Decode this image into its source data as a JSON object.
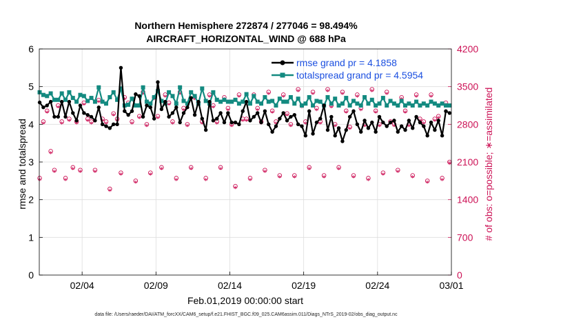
{
  "chart_data": {
    "type": "line",
    "title": "Northern Hemisphere 272874 / 277046 = 98.494%",
    "subtitle": "AIRCRAFT_HORIZONTAL_WIND @ 688 hPa",
    "xlabel": "Feb.01,2019 00:00:00 start",
    "ylabel": "rmse and totalspread",
    "y2label": "# of obs: o=possible; ∗=assimilated",
    "footnote": "data file: /Users/raeder/DAI/ATM_forcXX/CAM6_setup/f.e21.FHIST_BGC.f09_025.CAM6assim.011/Diags_NTrS_2019-02/obs_diag_output.nc",
    "x_ticks": [
      "02/04",
      "02/09",
      "02/14",
      "02/19",
      "02/24",
      "03/01"
    ],
    "x_tick_days": [
      3,
      8,
      13,
      18,
      23,
      28
    ],
    "xlim": [
      0.1,
      28.0
    ],
    "ylim": [
      0,
      6
    ],
    "y_ticks": [
      "0",
      "1",
      "2",
      "3",
      "4",
      "5",
      "6"
    ],
    "y2lim": [
      0,
      4200
    ],
    "y2_ticks": [
      "0",
      "700",
      "1400",
      "2100",
      "2800",
      "3500",
      "4200"
    ],
    "grid": true,
    "legend_position": "top-right",
    "colors": {
      "rmse": "#000000",
      "totalspread": "#138a80",
      "obs": "#cc1155",
      "legend_text": "#1b4fe0",
      "grid": "#dddddd"
    },
    "series": [
      {
        "name": "rmse grand pr = 4.1858",
        "axis": "left",
        "x": [
          0.125,
          0.375,
          0.625,
          0.875,
          1.125,
          1.375,
          1.625,
          1.875,
          2.125,
          2.375,
          2.625,
          2.875,
          3.125,
          3.375,
          3.625,
          3.875,
          4.125,
          4.375,
          4.625,
          4.875,
          5.125,
          5.375,
          5.625,
          5.875,
          6.125,
          6.375,
          6.625,
          6.875,
          7.125,
          7.375,
          7.625,
          7.875,
          8.125,
          8.375,
          8.625,
          8.875,
          9.125,
          9.375,
          9.625,
          9.875,
          10.125,
          10.375,
          10.625,
          10.875,
          11.125,
          11.375,
          11.625,
          11.875,
          12.125,
          12.375,
          12.625,
          12.875,
          13.125,
          13.375,
          13.625,
          13.875,
          14.125,
          14.375,
          14.625,
          14.875,
          15.125,
          15.375,
          15.625,
          15.875,
          16.125,
          16.375,
          16.625,
          16.875,
          17.125,
          17.375,
          17.625,
          17.875,
          18.125,
          18.375,
          18.625,
          18.875,
          19.125,
          19.375,
          19.625,
          19.875,
          20.125,
          20.375,
          20.625,
          20.875,
          21.125,
          21.375,
          21.625,
          21.875,
          22.125,
          22.375,
          22.625,
          22.875,
          23.125,
          23.375,
          23.625,
          23.875,
          24.125,
          24.375,
          24.625,
          24.875,
          25.125,
          25.375,
          25.625,
          25.875,
          26.125,
          26.375,
          26.625,
          26.875,
          27.125,
          27.375,
          27.625,
          27.875
        ],
        "values": [
          4.58,
          4.45,
          4.5,
          4.6,
          4.2,
          4.2,
          4.6,
          4.2,
          4.6,
          4.3,
          4.1,
          4.5,
          4.3,
          4.25,
          4.2,
          4.1,
          4.45,
          4.0,
          3.95,
          3.9,
          4.0,
          4.0,
          5.5,
          4.35,
          4.25,
          4.35,
          4.8,
          4.75,
          4.2,
          4.5,
          4.45,
          4.15,
          5.12,
          4.4,
          4.6,
          4.2,
          4.3,
          4.45,
          4.05,
          4.3,
          4.45,
          4.7,
          4.25,
          4.6,
          4.15,
          3.85,
          4.6,
          4.1,
          4.15,
          4.3,
          4.05,
          4.3,
          4.05,
          4.05,
          4.0,
          4.35,
          4.6,
          4.1,
          4.2,
          4.3,
          4.05,
          4.35,
          4.0,
          3.8,
          3.95,
          4.15,
          4.3,
          4.1,
          4.2,
          4.25,
          4.0,
          3.95,
          3.7,
          4.35,
          3.75,
          4.05,
          4.15,
          4.5,
          3.85,
          4.2,
          3.7,
          3.9,
          3.55,
          3.85,
          4.2,
          4.35,
          4.0,
          3.8,
          4.1,
          3.9,
          4.05,
          3.8,
          4.2,
          4.05,
          3.95,
          4.05,
          4.1,
          3.8,
          3.95,
          3.85,
          4.1,
          3.9,
          4.2,
          4.05,
          3.95,
          3.7,
          4.05,
          3.85,
          4.1,
          3.7,
          4.35,
          4.3
        ]
      },
      {
        "name": "totalspread grand pr = 4.5954",
        "axis": "left",
        "x": [
          0.125,
          0.375,
          0.625,
          0.875,
          1.125,
          1.375,
          1.625,
          1.875,
          2.125,
          2.375,
          2.625,
          2.875,
          3.125,
          3.375,
          3.625,
          3.875,
          4.125,
          4.375,
          4.625,
          4.875,
          5.125,
          5.375,
          5.625,
          5.875,
          6.125,
          6.375,
          6.625,
          6.875,
          7.125,
          7.375,
          7.625,
          7.875,
          8.125,
          8.375,
          8.625,
          8.875,
          9.125,
          9.375,
          9.625,
          9.875,
          10.125,
          10.375,
          10.625,
          10.875,
          11.125,
          11.375,
          11.625,
          11.875,
          12.125,
          12.375,
          12.625,
          12.875,
          13.125,
          13.375,
          13.625,
          13.875,
          14.125,
          14.375,
          14.625,
          14.875,
          15.125,
          15.375,
          15.625,
          15.875,
          16.125,
          16.375,
          16.625,
          16.875,
          17.125,
          17.375,
          17.625,
          17.875,
          18.125,
          18.375,
          18.625,
          18.875,
          19.125,
          19.375,
          19.625,
          19.875,
          20.125,
          20.375,
          20.625,
          20.875,
          21.125,
          21.375,
          21.625,
          21.875,
          22.125,
          22.375,
          22.625,
          22.875,
          23.125,
          23.375,
          23.625,
          23.875,
          24.125,
          24.375,
          24.625,
          24.875,
          25.125,
          25.375,
          25.625,
          25.875,
          26.125,
          26.375,
          26.625,
          26.875,
          27.125,
          27.375,
          27.625,
          27.875
        ],
        "values": [
          4.85,
          4.78,
          4.75,
          4.82,
          4.65,
          4.65,
          4.82,
          4.65,
          4.85,
          4.7,
          4.6,
          4.78,
          4.75,
          4.62,
          4.7,
          4.6,
          4.98,
          4.6,
          4.55,
          4.72,
          4.85,
          4.65,
          4.95,
          4.5,
          4.52,
          4.68,
          4.5,
          4.5,
          4.98,
          4.6,
          4.55,
          4.72,
          4.88,
          4.62,
          4.55,
          4.85,
          4.75,
          4.55,
          4.98,
          4.62,
          4.55,
          4.85,
          4.75,
          4.55,
          4.95,
          4.62,
          4.55,
          4.85,
          4.65,
          4.6,
          4.65,
          4.6,
          4.6,
          4.65,
          4.55,
          4.6,
          4.8,
          4.55,
          4.75,
          4.6,
          4.55,
          4.72,
          4.6,
          4.62,
          4.5,
          4.68,
          4.6,
          4.6,
          4.72,
          4.55,
          4.68,
          4.5,
          4.55,
          4.72,
          4.5,
          4.62,
          4.6,
          4.5,
          4.72,
          4.55,
          4.68,
          4.5,
          4.55,
          4.7,
          4.5,
          4.62,
          4.55,
          4.5,
          4.72,
          4.55,
          4.65,
          4.5,
          4.55,
          4.7,
          4.5,
          4.62,
          4.55,
          4.5,
          4.62,
          4.5,
          4.55,
          4.5,
          4.6,
          4.5,
          4.55,
          4.5,
          4.6,
          4.55,
          4.5,
          4.55,
          4.5,
          4.5
        ]
      },
      {
        "name": "possible",
        "axis": "right",
        "marker": "o",
        "x": [
          0.125,
          0.375,
          0.625,
          0.875,
          1.125,
          1.375,
          1.625,
          1.875,
          2.125,
          2.375,
          2.625,
          2.875,
          3.125,
          3.375,
          3.625,
          3.875,
          4.125,
          4.375,
          4.625,
          4.875,
          5.125,
          5.375,
          5.625,
          5.875,
          6.125,
          6.375,
          6.625,
          6.875,
          7.125,
          7.375,
          7.625,
          7.875,
          8.125,
          8.375,
          8.625,
          8.875,
          9.125,
          9.375,
          9.625,
          9.875,
          10.125,
          10.375,
          10.625,
          10.875,
          11.125,
          11.375,
          11.625,
          11.875,
          12.125,
          12.375,
          12.625,
          12.875,
          13.125,
          13.375,
          13.625,
          13.875,
          14.125,
          14.375,
          14.625,
          14.875,
          15.125,
          15.375,
          15.625,
          15.875,
          16.125,
          16.375,
          16.625,
          16.875,
          17.125,
          17.375,
          17.625,
          17.875,
          18.125,
          18.375,
          18.625,
          18.875,
          19.125,
          19.375,
          19.625,
          19.875,
          20.125,
          20.375,
          20.625,
          20.875,
          21.125,
          21.375,
          21.625,
          21.875,
          22.125,
          22.375,
          22.625,
          22.875,
          23.125,
          23.375,
          23.625,
          23.875,
          24.125,
          24.375,
          24.625,
          24.875,
          25.125,
          25.375,
          25.625,
          25.875,
          26.125,
          26.375,
          26.625,
          26.875,
          27.125,
          27.375,
          27.625,
          27.875
        ],
        "values": [
          1800,
          2850,
          3050,
          2300,
          1950,
          3150,
          2850,
          1800,
          2900,
          2000,
          2850,
          1950,
          3200,
          2900,
          2850,
          1950,
          3250,
          2900,
          2850,
          1600,
          3000,
          2900,
          1900,
          3300,
          3200,
          2850,
          1750,
          2950,
          3400,
          2800,
          1900,
          3300,
          2950,
          2000,
          3350,
          3200,
          2850,
          1800,
          3400,
          3100,
          2800,
          2000,
          3300,
          3200,
          2850,
          1800,
          3350,
          3150,
          2850,
          2000,
          3300,
          3100,
          2800,
          1650,
          3350,
          2900,
          2900,
          1800,
          3350,
          3100,
          2850,
          1950,
          3400,
          3050,
          2850,
          1850,
          3350,
          3000,
          2800,
          1850,
          3450,
          3150,
          2850,
          2000,
          3400,
          3100,
          2850,
          1850,
          3450,
          3150,
          2800,
          2000,
          3400,
          3050,
          2750,
          1850,
          3350,
          3100,
          2800,
          1800,
          3450,
          3050,
          2800,
          1900,
          3400,
          2850,
          2800,
          1950,
          3300,
          3050,
          2800,
          1850,
          3350,
          2900,
          2850,
          1750,
          3350,
          2900,
          2950,
          1800,
          3200,
          2100
        ]
      },
      {
        "name": "assimilated",
        "axis": "right",
        "marker": "*",
        "x": [
          0.125,
          0.375,
          0.625,
          0.875,
          1.125,
          1.375,
          1.625,
          1.875,
          2.125,
          2.375,
          2.625,
          2.875,
          3.125,
          3.375,
          3.625,
          3.875,
          4.125,
          4.375,
          4.625,
          4.875,
          5.125,
          5.375,
          5.625,
          5.875,
          6.125,
          6.375,
          6.625,
          6.875,
          7.125,
          7.375,
          7.625,
          7.875,
          8.125,
          8.375,
          8.625,
          8.875,
          9.125,
          9.375,
          9.625,
          9.875,
          10.125,
          10.375,
          10.625,
          10.875,
          11.125,
          11.375,
          11.625,
          11.875,
          12.125,
          12.375,
          12.625,
          12.875,
          13.125,
          13.375,
          13.625,
          13.875,
          14.125,
          14.375,
          14.625,
          14.875,
          15.125,
          15.375,
          15.625,
          15.875,
          16.125,
          16.375,
          16.625,
          16.875,
          17.125,
          17.375,
          17.625,
          17.875,
          18.125,
          18.375,
          18.625,
          18.875,
          19.125,
          19.375,
          19.625,
          19.875,
          20.125,
          20.375,
          20.625,
          20.875,
          21.125,
          21.375,
          21.625,
          21.875,
          22.125,
          22.375,
          22.625,
          22.875,
          23.125,
          23.375,
          23.625,
          23.875,
          24.125,
          24.375,
          24.625,
          24.875,
          25.125,
          25.375,
          25.625,
          25.875,
          26.125,
          26.375,
          26.625,
          26.875,
          27.125,
          27.375,
          27.625,
          27.875
        ],
        "values": [
          1750,
          2800,
          3000,
          2250,
          1900,
          3100,
          2800,
          1750,
          2850,
          1950,
          2800,
          1900,
          3150,
          2850,
          2800,
          1900,
          3200,
          2850,
          2800,
          1550,
          2950,
          2850,
          1850,
          3250,
          3150,
          2800,
          1700,
          2900,
          3350,
          2750,
          1850,
          3250,
          2900,
          1950,
          3300,
          3150,
          2800,
          1750,
          3350,
          3050,
          2750,
          1950,
          3250,
          3150,
          2800,
          1750,
          3300,
          3100,
          2800,
          1950,
          3250,
          3050,
          2750,
          1600,
          3300,
          2850,
          2850,
          1750,
          3300,
          3050,
          2800,
          1900,
          3350,
          3000,
          2800,
          1800,
          3300,
          2950,
          2750,
          1800,
          3400,
          3100,
          2800,
          1950,
          3350,
          3050,
          2800,
          1800,
          3400,
          3100,
          2750,
          1950,
          3350,
          3000,
          2700,
          1800,
          3300,
          3050,
          2750,
          1750,
          3400,
          3000,
          2750,
          1850,
          3350,
          2800,
          2750,
          1900,
          3250,
          3000,
          2750,
          1800,
          3300,
          2850,
          2800,
          1700,
          3300,
          2850,
          2900,
          1750,
          3150,
          2050
        ]
      }
    ]
  }
}
